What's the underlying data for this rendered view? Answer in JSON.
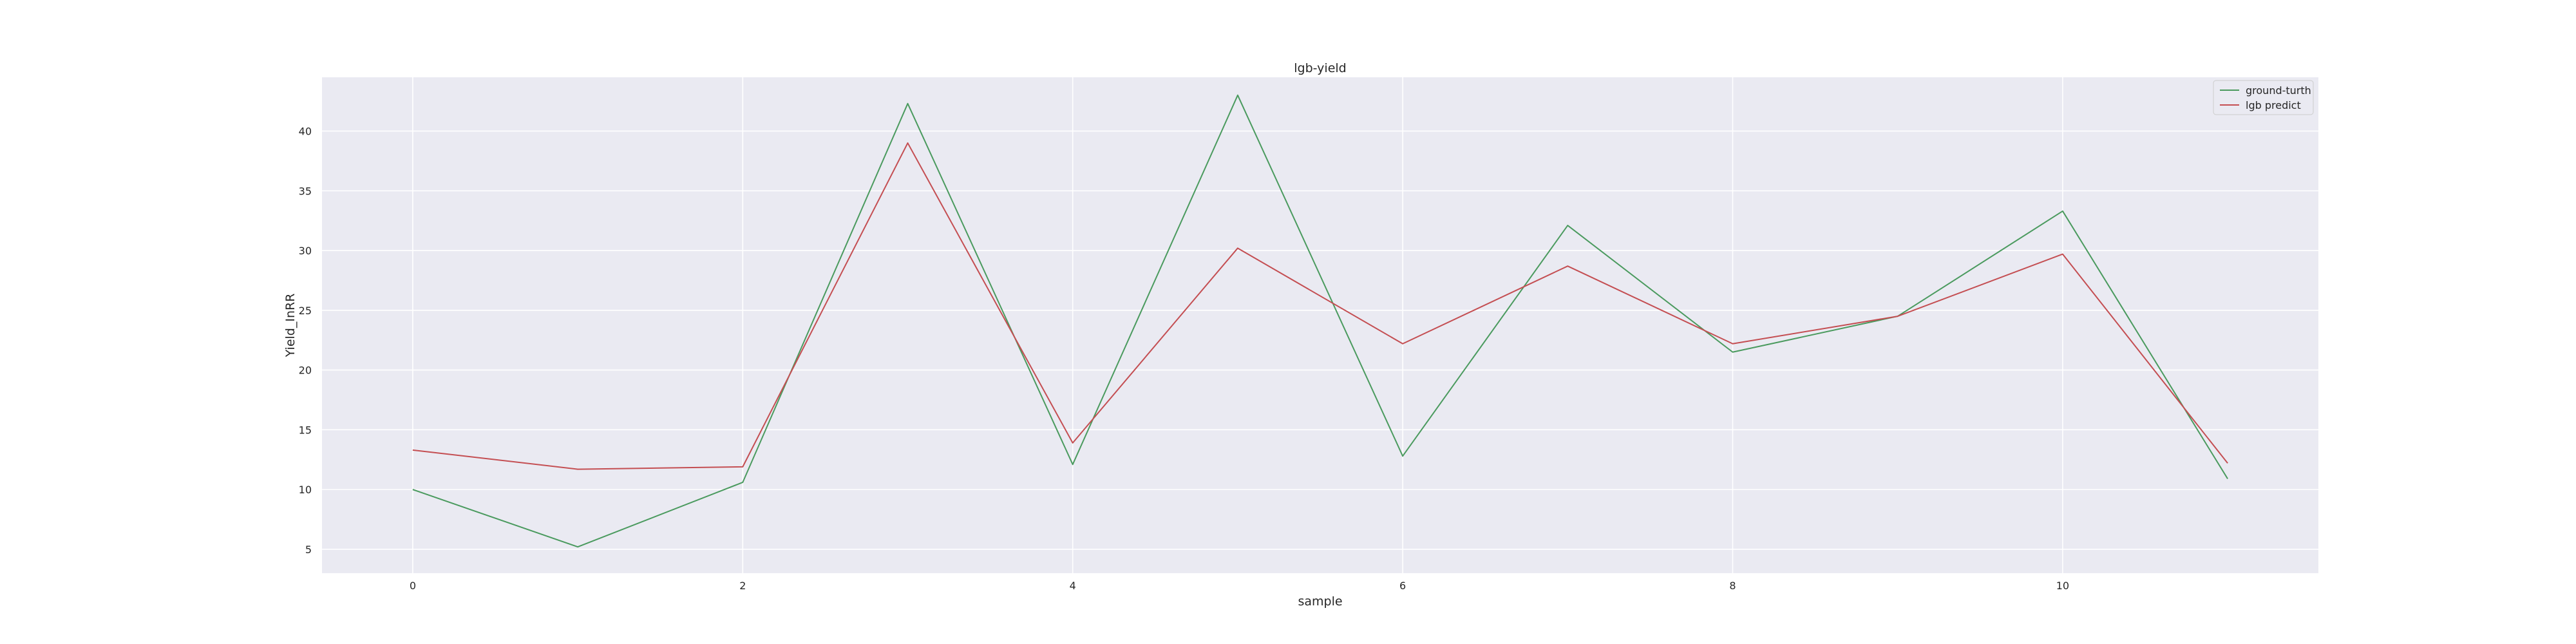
{
  "chart_data": {
    "type": "line",
    "title": "lgb-yield",
    "xlabel": "sample",
    "ylabel": "Yield_InRR",
    "x": [
      0,
      1,
      2,
      3,
      4,
      5,
      6,
      7,
      8,
      9,
      10,
      11
    ],
    "xlim": [
      -0.55,
      11.55
    ],
    "ylim": [
      3.0,
      44.5
    ],
    "xticks": [
      0,
      2,
      4,
      6,
      8,
      10
    ],
    "yticks": [
      5,
      10,
      15,
      20,
      25,
      30,
      35,
      40
    ],
    "grid": true,
    "legend_position": "top-right",
    "series": [
      {
        "name": "ground-turth",
        "color": "#4a9a5e",
        "values": [
          10.0,
          5.2,
          10.6,
          42.3,
          12.1,
          43.0,
          12.8,
          32.1,
          21.5,
          24.5,
          33.3,
          10.9
        ]
      },
      {
        "name": "lgb predict",
        "color": "#c44e52",
        "values": [
          13.3,
          11.7,
          11.9,
          39.0,
          13.9,
          30.2,
          22.2,
          28.7,
          22.2,
          24.5,
          29.7,
          12.2
        ]
      }
    ]
  }
}
